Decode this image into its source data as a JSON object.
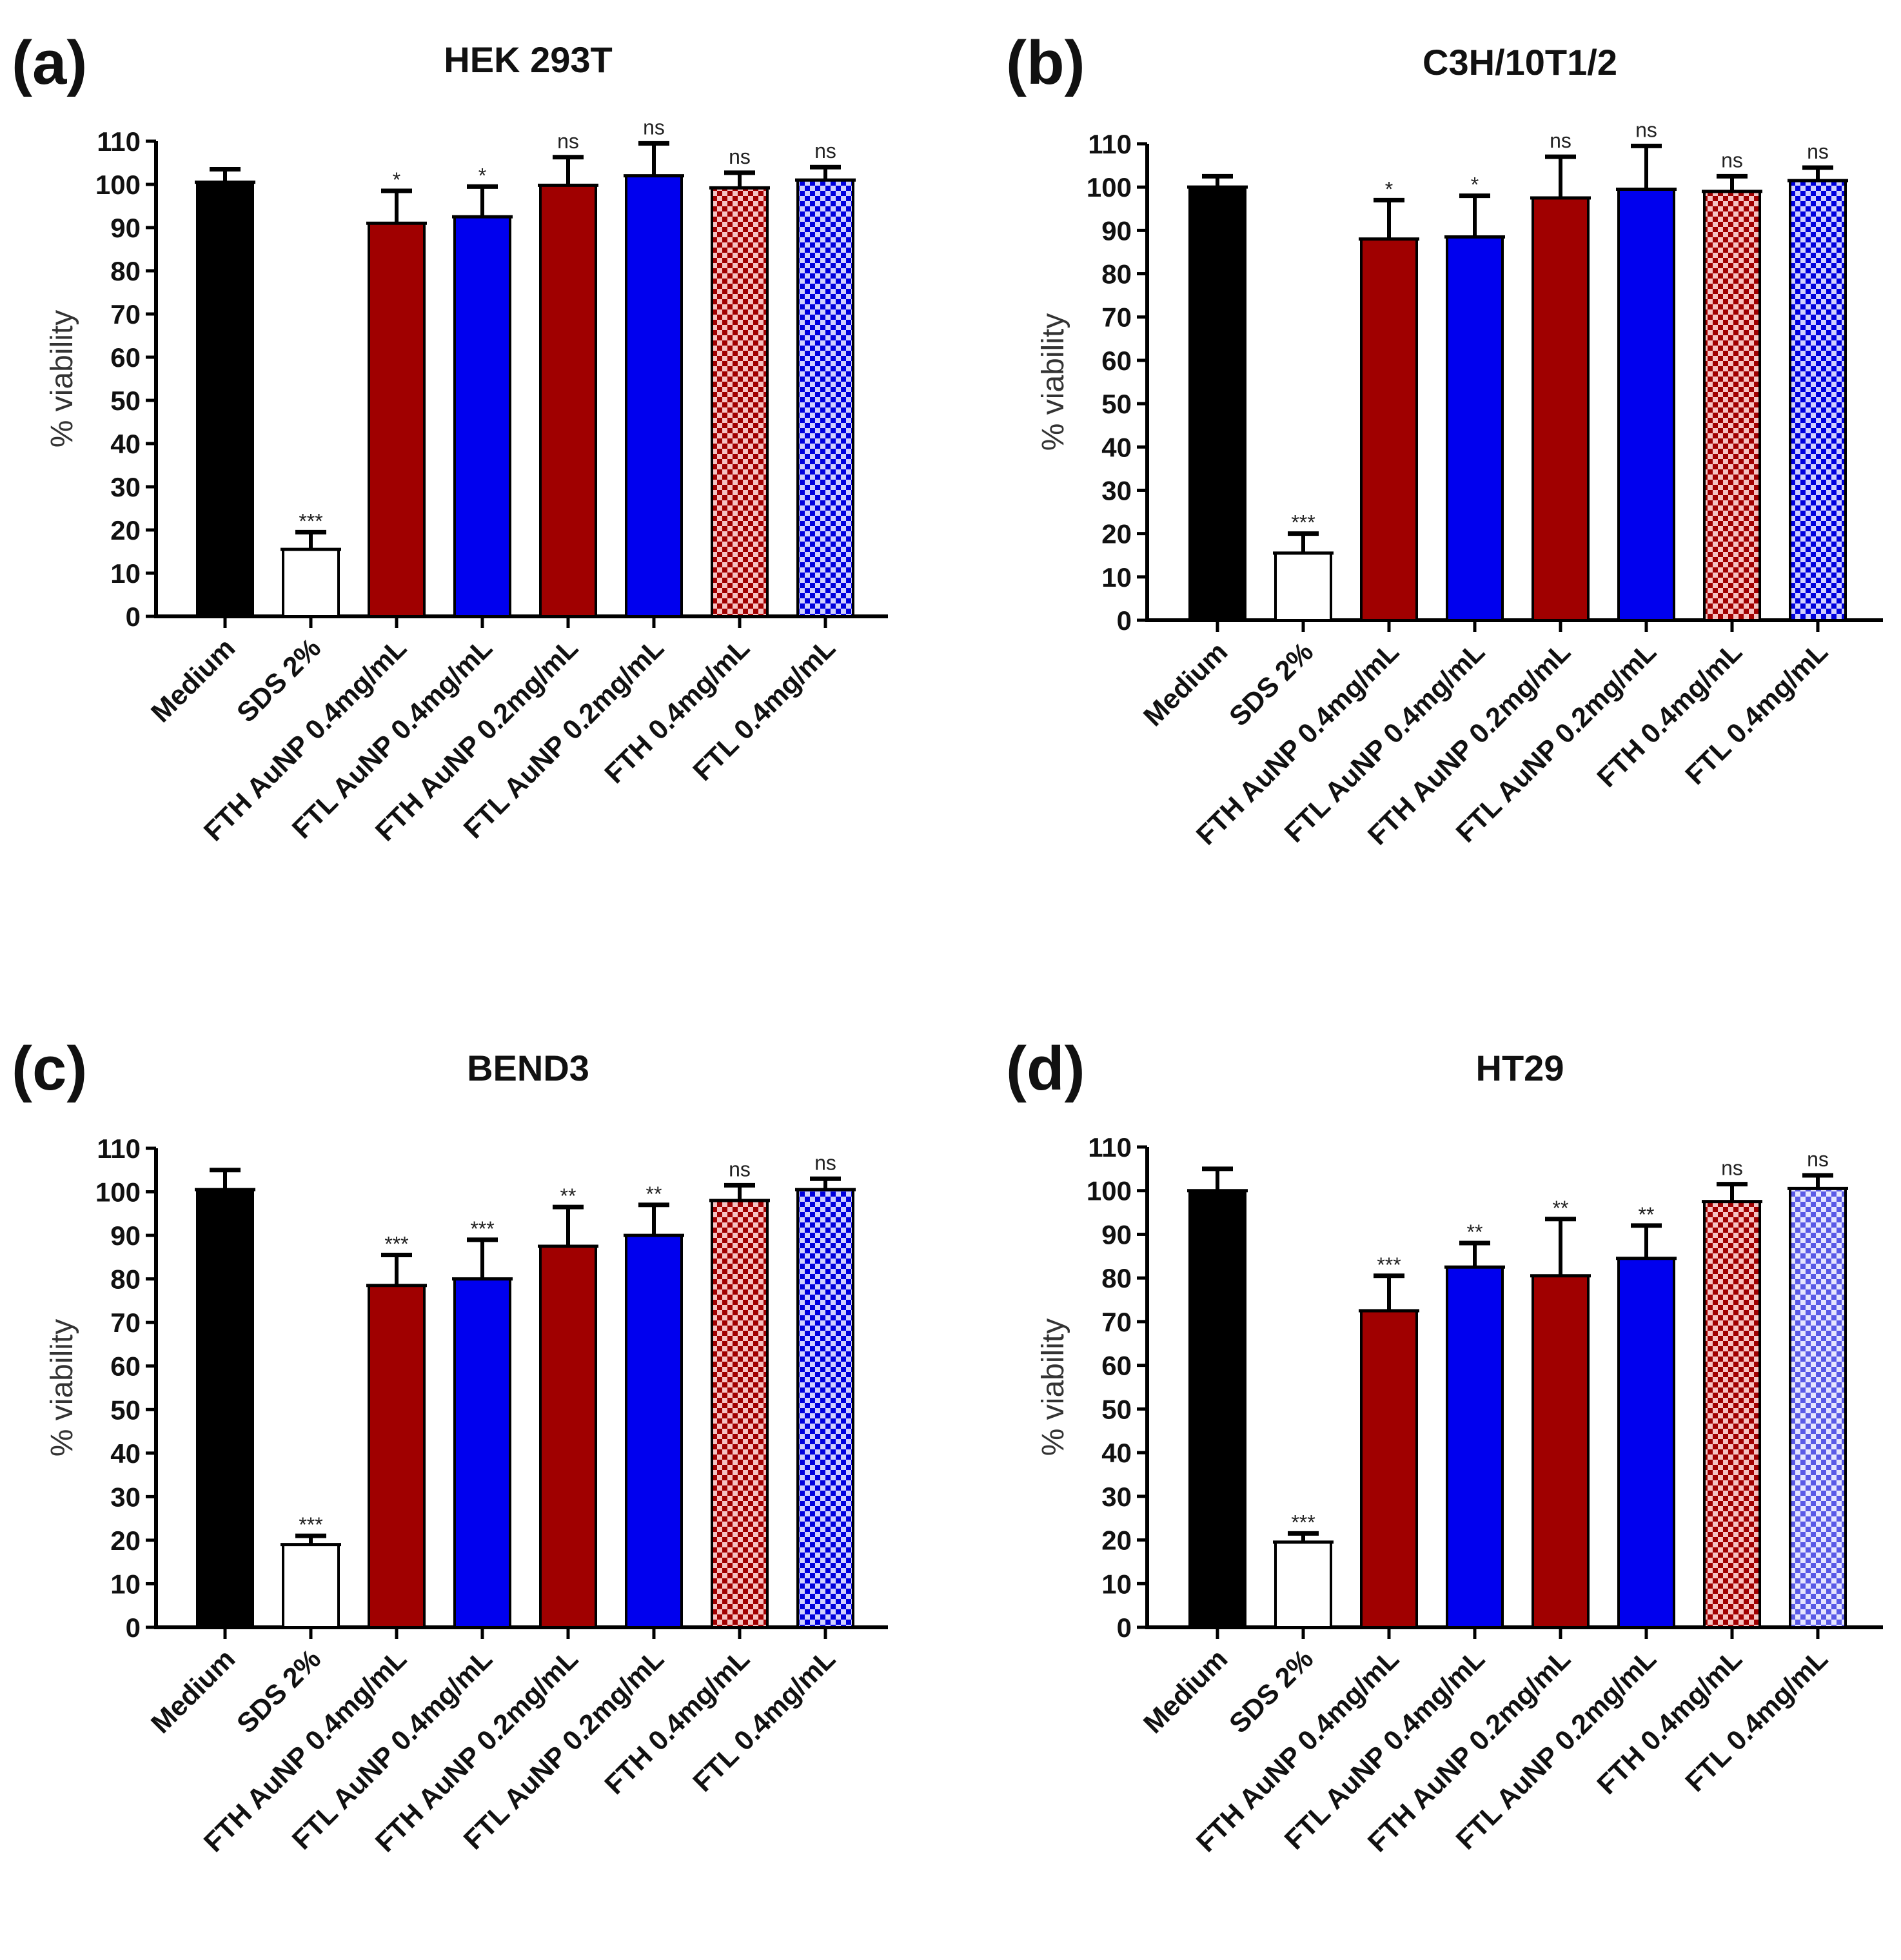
{
  "chart_data": [
    {
      "type": "bar",
      "panel_label": "(a)",
      "title": "HEK 293T",
      "xlabel": "",
      "ylabel": "% viability",
      "ylim": [
        0,
        110
      ],
      "yticks": [
        0,
        10,
        20,
        30,
        40,
        50,
        60,
        70,
        80,
        90,
        100,
        110
      ],
      "categories": [
        "Medium",
        "SDS 2%",
        "FTH AuNP 0.4mg/mL",
        "FTL AuNP 0.4mg/mL",
        "FTH AuNP 0.2mg/mL",
        "FTL AuNP 0.2mg/mL",
        "FTH 0.4mg/mL",
        "FTL 0.4mg/mL"
      ],
      "values": [
        100.5,
        15.5,
        91,
        92.5,
        99.8,
        102,
        99.2,
        101
      ],
      "errors": [
        3,
        4,
        7.5,
        7,
        6.5,
        7.5,
        3.5,
        3
      ],
      "significance": [
        "",
        "***",
        "*",
        "*",
        "ns",
        "ns",
        "ns",
        "ns"
      ]
    },
    {
      "type": "bar",
      "panel_label": "(b)",
      "title": "C3H/10T1/2",
      "xlabel": "",
      "ylabel": "% viability",
      "ylim": [
        0,
        110
      ],
      "yticks": [
        0,
        10,
        20,
        30,
        40,
        50,
        60,
        70,
        80,
        90,
        100,
        110
      ],
      "categories": [
        "Medium",
        "SDS 2%",
        "FTH AuNP 0.4mg/mL",
        "FTL AuNP 0.4mg/mL",
        "FTH AuNP 0.2mg/mL",
        "FTL AuNP 0.2mg/mL",
        "FTH 0.4mg/mL",
        "FTL 0.4mg/mL"
      ],
      "values": [
        100,
        15.5,
        88,
        88.5,
        97.5,
        99.5,
        99,
        101.5
      ],
      "errors": [
        2.5,
        4.5,
        9,
        9.5,
        9.5,
        10,
        3.5,
        3
      ],
      "significance": [
        "",
        "***",
        "*",
        "*",
        "ns",
        "ns",
        "ns",
        "ns"
      ]
    },
    {
      "type": "bar",
      "panel_label": "(c)",
      "title": "BEND3",
      "xlabel": "",
      "ylabel": "% viability",
      "ylim": [
        0,
        110
      ],
      "yticks": [
        0,
        10,
        20,
        30,
        40,
        50,
        60,
        70,
        80,
        90,
        100,
        110
      ],
      "categories": [
        "Medium",
        "SDS 2%",
        "FTH AuNP 0.4mg/mL",
        "FTL AuNP 0.4mg/mL",
        "FTH AuNP 0.2mg/mL",
        "FTL AuNP 0.2mg/mL",
        "FTH 0.4mg/mL",
        "FTL 0.4mg/mL"
      ],
      "values": [
        100.5,
        19,
        78.5,
        80,
        87.5,
        90,
        98,
        100.5
      ],
      "errors": [
        4.5,
        2,
        7,
        9,
        9,
        7,
        3.5,
        2.5
      ],
      "significance": [
        "",
        "***",
        "***",
        "***",
        "**",
        "**",
        "ns",
        "ns"
      ]
    },
    {
      "type": "bar",
      "panel_label": "(d)",
      "title": "HT29",
      "xlabel": "",
      "ylabel": "% viability",
      "ylim": [
        0,
        110
      ],
      "yticks": [
        0,
        10,
        20,
        30,
        40,
        50,
        60,
        70,
        80,
        90,
        100,
        110
      ],
      "categories": [
        "Medium",
        "SDS 2%",
        "FTH AuNP 0.4mg/mL",
        "FTL AuNP 0.4mg/mL",
        "FTH AuNP 0.2mg/mL",
        "FTL AuNP 0.2mg/mL",
        "FTH 0.4mg/mL",
        "FTL 0.4mg/mL"
      ],
      "values": [
        100,
        19.5,
        72.5,
        82.5,
        80.5,
        84.5,
        97.5,
        100.5
      ],
      "errors": [
        5,
        2,
        8,
        5.5,
        13,
        7.5,
        4,
        3
      ],
      "significance": [
        "",
        "***",
        "***",
        "**",
        "**",
        "**",
        "ns",
        "ns"
      ]
    }
  ],
  "colors": {
    "medium": "#000000",
    "sds": "#ffffff",
    "fth": "#a00000",
    "ftl": "#0000ee",
    "fth_check_light": "#f4b8b8",
    "ftl_check_light": "#c8c8ff"
  }
}
